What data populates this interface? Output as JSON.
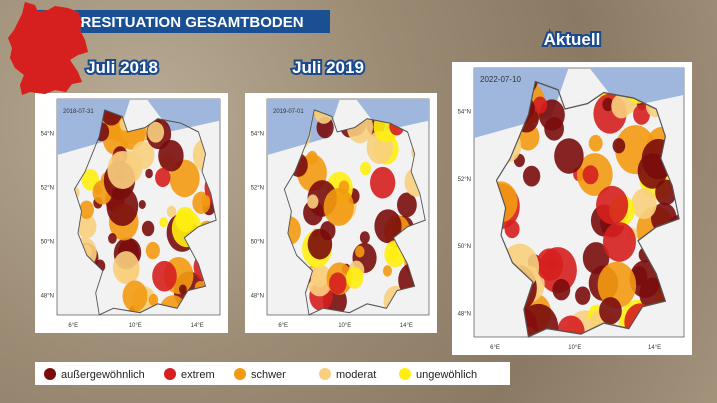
{
  "header": {
    "title": "DÜRRESITUATION GESAMTBODEN"
  },
  "panels": [
    {
      "title": "Juli 2018",
      "date": "2018-07-31"
    },
    {
      "title": "Juli 2019",
      "date": "2019-07-01"
    },
    {
      "title": "Aktuell",
      "date": "2022-07-10"
    }
  ],
  "lat_labels": [
    "54°N",
    "52°N",
    "50°N",
    "48°N"
  ],
  "lon_labels": [
    "6°E",
    "10°E",
    "14°E"
  ],
  "legend": [
    {
      "label": "außergewöhnlich",
      "color": "#7a0c0c"
    },
    {
      "label": "extrem",
      "color": "#d61f1f"
    },
    {
      "label": "schwer",
      "color": "#f29a12"
    },
    {
      "label": "moderat",
      "color": "#f8cf7e"
    },
    {
      "label": "ungewöhlich",
      "color": "#ffee10"
    }
  ]
}
